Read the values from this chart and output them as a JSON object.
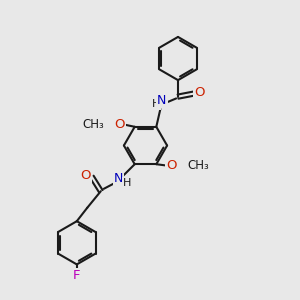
{
  "bg_color": "#e8e8e8",
  "bond_color": "#1a1a1a",
  "N_color": "#0000bb",
  "O_color": "#cc2200",
  "F_color": "#bb00bb",
  "lw": 1.5,
  "dbo": 0.07,
  "figsize": [
    3.0,
    3.0
  ],
  "dpi": 100,
  "xlim": [
    0,
    10
  ],
  "ylim": [
    0,
    10
  ],
  "ring_r": 0.72
}
